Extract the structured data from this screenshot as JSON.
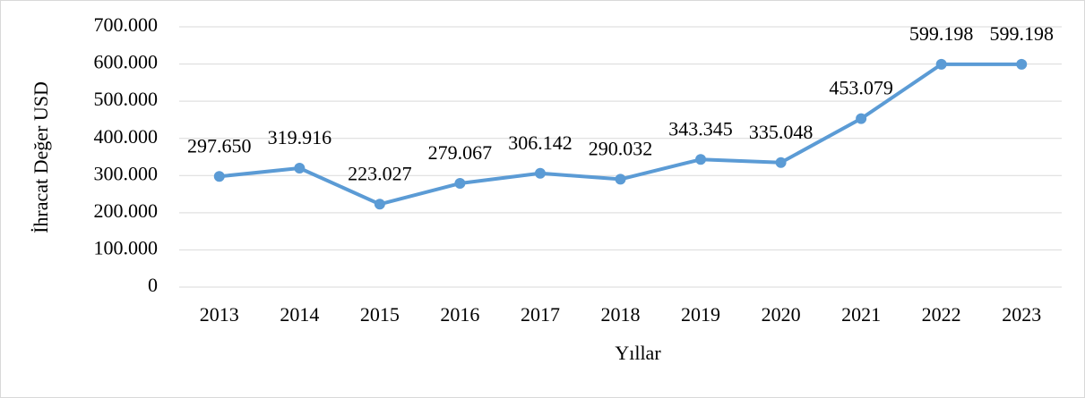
{
  "chart_data": {
    "type": "line",
    "x_label": "Yıllar",
    "y_label": "İhracat Değer USD",
    "categories": [
      "2013",
      "2014",
      "2015",
      "2016",
      "2017",
      "2018",
      "2019",
      "2020",
      "2021",
      "2022",
      "2023"
    ],
    "series": [
      {
        "color": "#5b9bd5",
        "values": [
          297650,
          319916,
          223027,
          279067,
          306142,
          290032,
          343345,
          335048,
          453079,
          599198,
          599198
        ],
        "value_labels": [
          "297.650",
          "319.916",
          "223.027",
          "279.067",
          "306.142",
          "290.032",
          "343.345",
          "335.048",
          "453.079",
          "599.198",
          "599.198"
        ]
      }
    ],
    "ylim": [
      0,
      700000
    ],
    "yticks": [
      0,
      {
        "value": 100000,
        "label": "100.000"
      },
      {
        "value": 200000,
        "label": "200.000"
      },
      {
        "value": 300000,
        "label": "300.000"
      },
      {
        "value": 400000,
        "label": "400.000"
      },
      {
        "value": 500000,
        "label": "500.000"
      },
      {
        "value": 600000,
        "label": "600.000"
      },
      {
        "value": 700000,
        "label": "700.000"
      }
    ],
    "grid": true
  }
}
